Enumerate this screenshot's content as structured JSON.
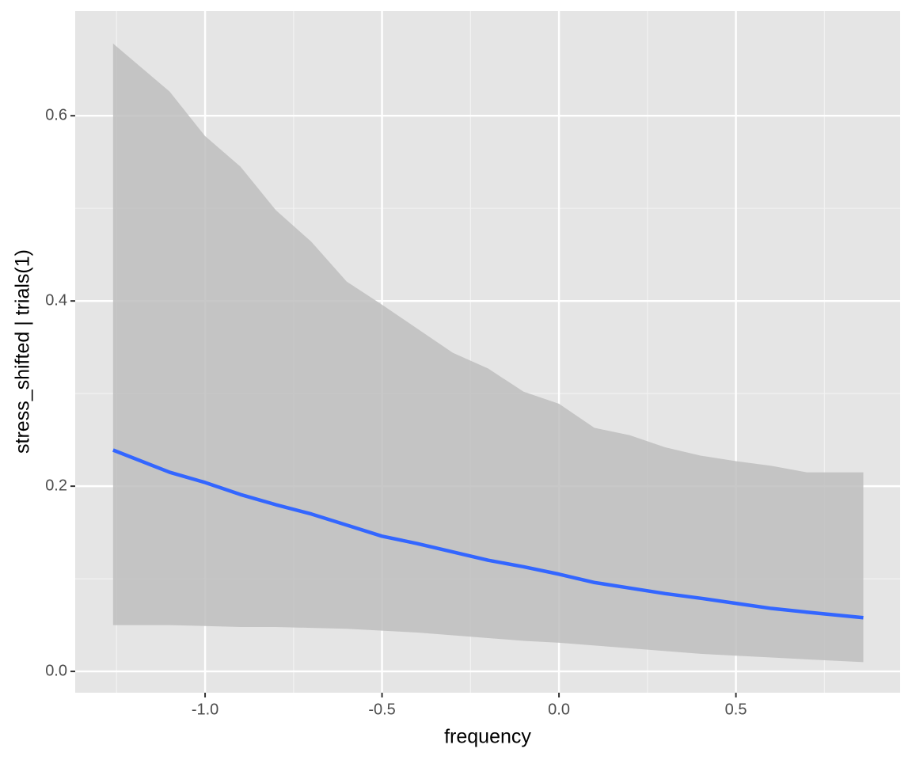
{
  "chart_data": {
    "type": "line",
    "x_label": "frequency",
    "y_label": "stress_shifted | trials(1)",
    "x": [
      -1.26,
      -1.1,
      -1.0,
      -0.9,
      -0.8,
      -0.7,
      -0.6,
      -0.5,
      -0.4,
      -0.3,
      -0.2,
      -0.1,
      0,
      0.1,
      0.2,
      0.3,
      0.4,
      0.5,
      0.6,
      0.7,
      0.86
    ],
    "values": [
      0.239,
      0.215,
      0.204,
      0.191,
      0.18,
      0.17,
      0.158,
      0.146,
      0.138,
      0.129,
      0.12,
      0.113,
      0.105,
      0.096,
      0.09,
      0.084,
      0.079,
      0.0735,
      0.068,
      0.064,
      0.058
    ],
    "upper": [
      0.678,
      0.626,
      0.578,
      0.545,
      0.498,
      0.464,
      0.421,
      0.396,
      0.37,
      0.344,
      0.327,
      0.302,
      0.289,
      0.263,
      0.255,
      0.242,
      0.233,
      0.227,
      0.222,
      0.215,
      0.215
    ],
    "lower": [
      0.05,
      0.05,
      0.049,
      0.048,
      0.048,
      0.047,
      0.046,
      0.044,
      0.042,
      0.039,
      0.036,
      0.033,
      0.031,
      0.028,
      0.025,
      0.022,
      0.019,
      0.017,
      0.015,
      0.013,
      0.01
    ],
    "color": "#3366ff",
    "band_color": "#bebebe",
    "xlim": [
      -1.367,
      0.964
    ],
    "ylim": [
      -0.023,
      0.713
    ],
    "xticks": [
      {
        "value": -1,
        "label": "-1.0"
      },
      -0.5,
      {
        "value": 0,
        "label": "0.0"
      },
      0.5
    ],
    "yticks": [
      {
        "value": 0,
        "label": "0.0"
      },
      0.2,
      0.4,
      0.6
    ],
    "xminor": [
      -1.25,
      -0.75,
      -0.25,
      0.25,
      0.75
    ],
    "yminor": [
      0.1,
      0.3,
      0.5
    ],
    "grid": true
  }
}
